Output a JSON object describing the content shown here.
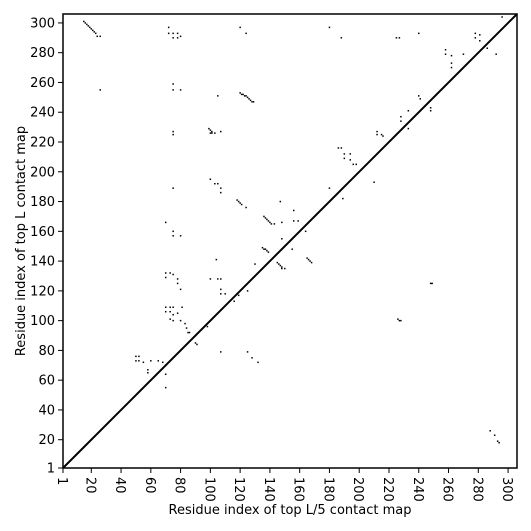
{
  "chart_data": {
    "type": "scatter",
    "title": "",
    "xlabel": "Residue index of top L/5 contact map",
    "ylabel": "Residue index of top L contact map",
    "xlim": [
      1,
      306
    ],
    "ylim": [
      1,
      306
    ],
    "xticks": [
      1,
      20,
      40,
      60,
      80,
      100,
      120,
      140,
      160,
      180,
      200,
      220,
      240,
      260,
      280,
      300
    ],
    "yticks": [
      1,
      20,
      40,
      60,
      80,
      100,
      120,
      140,
      160,
      180,
      200,
      220,
      240,
      260,
      280,
      300
    ],
    "x_tick_rotation": -90,
    "grid": false,
    "diagonal": true,
    "series": [
      {
        "marker": "square",
        "color": "#000000",
        "points": [
          [
            15,
            301
          ],
          [
            16,
            300
          ],
          [
            17,
            299
          ],
          [
            18,
            298
          ],
          [
            19,
            297
          ],
          [
            20,
            296
          ],
          [
            21,
            295
          ],
          [
            22,
            294
          ],
          [
            23,
            293
          ],
          [
            24,
            291
          ],
          [
            26,
            291
          ],
          [
            26,
            255
          ],
          [
            72,
            297
          ],
          [
            72,
            293
          ],
          [
            75,
            293
          ],
          [
            75,
            290
          ],
          [
            78,
            293
          ],
          [
            78,
            290
          ],
          [
            80,
            291
          ],
          [
            120,
            297
          ],
          [
            124,
            293
          ],
          [
            180,
            297
          ],
          [
            188,
            290
          ],
          [
            225,
            290
          ],
          [
            227,
            290
          ],
          [
            240,
            293
          ],
          [
            258,
            282
          ],
          [
            258,
            279
          ],
          [
            262,
            278
          ],
          [
            262,
            273
          ],
          [
            262,
            270
          ],
          [
            270,
            279
          ],
          [
            278,
            293
          ],
          [
            278,
            290
          ],
          [
            281,
            292
          ],
          [
            281,
            288
          ],
          [
            286,
            283
          ],
          [
            292,
            279
          ],
          [
            75,
            259
          ],
          [
            75,
            255
          ],
          [
            80,
            255
          ],
          [
            105,
            251
          ],
          [
            120,
            253
          ],
          [
            121,
            252
          ],
          [
            122,
            252
          ],
          [
            123,
            251
          ],
          [
            124,
            251
          ],
          [
            125,
            250
          ],
          [
            126,
            249
          ],
          [
            127,
            248
          ],
          [
            128,
            247
          ],
          [
            129,
            247
          ],
          [
            75,
            227
          ],
          [
            75,
            225
          ],
          [
            99,
            229
          ],
          [
            100,
            228
          ],
          [
            101,
            227
          ],
          [
            101,
            226
          ],
          [
            100,
            226
          ],
          [
            103,
            226
          ],
          [
            107,
            227
          ],
          [
            186,
            216
          ],
          [
            188,
            216
          ],
          [
            190,
            212
          ],
          [
            190,
            209
          ],
          [
            194,
            212
          ],
          [
            194,
            208
          ],
          [
            196,
            205
          ],
          [
            198,
            205
          ],
          [
            212,
            227
          ],
          [
            212,
            225
          ],
          [
            215,
            225
          ],
          [
            216,
            224
          ],
          [
            228,
            237
          ],
          [
            228,
            234
          ],
          [
            233,
            241
          ],
          [
            233,
            229
          ],
          [
            240,
            251
          ],
          [
            241,
            249
          ],
          [
            248,
            243
          ],
          [
            248,
            241
          ],
          [
            75,
            189
          ],
          [
            100,
            195
          ],
          [
            103,
            192
          ],
          [
            105,
            192
          ],
          [
            107,
            189
          ],
          [
            107,
            186
          ],
          [
            118,
            181
          ],
          [
            119,
            180
          ],
          [
            120,
            179
          ],
          [
            121,
            178
          ],
          [
            124,
            176
          ],
          [
            180,
            189
          ],
          [
            189,
            182
          ],
          [
            210,
            193
          ],
          [
            70,
            166
          ],
          [
            75,
            160
          ],
          [
            75,
            157
          ],
          [
            80,
            157
          ],
          [
            136,
            170
          ],
          [
            137,
            169
          ],
          [
            138,
            168
          ],
          [
            139,
            167
          ],
          [
            140,
            166
          ],
          [
            141,
            165
          ],
          [
            143,
            165
          ],
          [
            147,
            180
          ],
          [
            148,
            166
          ],
          [
            148,
            155
          ],
          [
            156,
            174
          ],
          [
            156,
            167
          ],
          [
            159,
            167
          ],
          [
            164,
            160
          ],
          [
            104,
            141
          ],
          [
            135,
            149
          ],
          [
            136,
            148
          ],
          [
            137,
            148
          ],
          [
            138,
            147
          ],
          [
            139,
            146
          ],
          [
            145,
            139
          ],
          [
            146,
            138
          ],
          [
            147,
            137
          ],
          [
            148,
            136
          ],
          [
            148,
            135
          ],
          [
            165,
            142
          ],
          [
            166,
            141
          ],
          [
            167,
            140
          ],
          [
            168,
            139
          ],
          [
            155,
            148
          ],
          [
            150,
            135
          ],
          [
            70,
            132
          ],
          [
            70,
            129
          ],
          [
            73,
            132
          ],
          [
            75,
            131
          ],
          [
            78,
            128
          ],
          [
            78,
            125
          ],
          [
            80,
            121
          ],
          [
            100,
            128
          ],
          [
            105,
            128
          ],
          [
            107,
            128
          ],
          [
            107,
            121
          ],
          [
            107,
            118
          ],
          [
            110,
            118
          ],
          [
            116,
            113
          ],
          [
            119,
            117
          ],
          [
            125,
            120
          ],
          [
            130,
            138
          ],
          [
            70,
            109
          ],
          [
            70,
            106
          ],
          [
            73,
            109
          ],
          [
            73,
            106
          ],
          [
            73,
            101
          ],
          [
            75,
            109
          ],
          [
            75,
            104
          ],
          [
            75,
            100
          ],
          [
            80,
            100
          ],
          [
            81,
            109
          ],
          [
            78,
            105
          ],
          [
            83,
            98
          ],
          [
            84,
            95
          ],
          [
            85,
            92
          ],
          [
            86,
            92
          ],
          [
            90,
            85
          ],
          [
            91,
            84
          ],
          [
            98,
            96
          ],
          [
            107,
            79
          ],
          [
            125,
            79
          ],
          [
            128,
            75
          ],
          [
            132,
            72
          ],
          [
            50,
            76
          ],
          [
            50,
            73
          ],
          [
            52,
            76
          ],
          [
            52,
            73
          ],
          [
            55,
            72
          ],
          [
            58,
            67
          ],
          [
            58,
            65
          ],
          [
            60,
            73
          ],
          [
            65,
            73
          ],
          [
            68,
            72
          ],
          [
            70,
            64
          ],
          [
            70,
            55
          ],
          [
            226,
            101
          ],
          [
            227,
            100
          ],
          [
            228,
            100
          ],
          [
            248,
            125
          ],
          [
            249,
            125
          ],
          [
            288,
            26
          ],
          [
            291,
            23
          ],
          [
            293,
            19
          ],
          [
            294,
            18
          ],
          [
            296,
            304
          ]
        ]
      }
    ]
  }
}
